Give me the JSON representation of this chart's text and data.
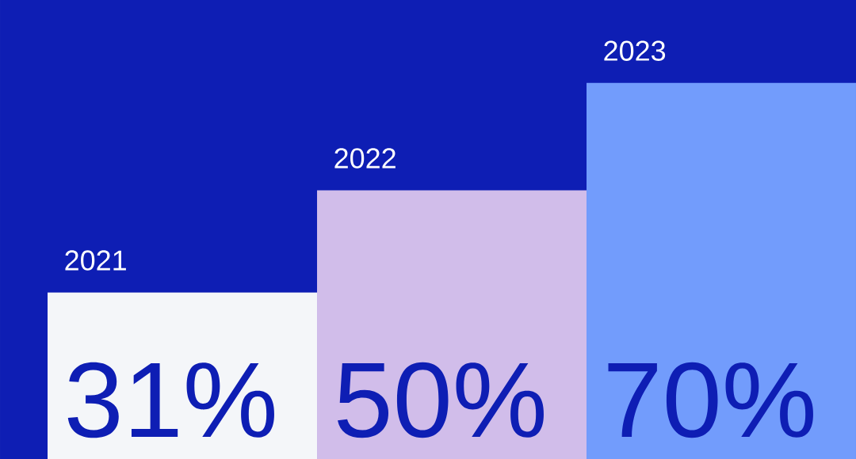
{
  "chart_data": {
    "type": "bar",
    "categories": [
      "2021",
      "2022",
      "2023"
    ],
    "values": [
      31,
      50,
      70
    ],
    "colors": [
      "#f4f6f9",
      "#d1bdea",
      "#729cfc"
    ],
    "value_labels": [
      "31%",
      "50%",
      "70%"
    ]
  }
}
